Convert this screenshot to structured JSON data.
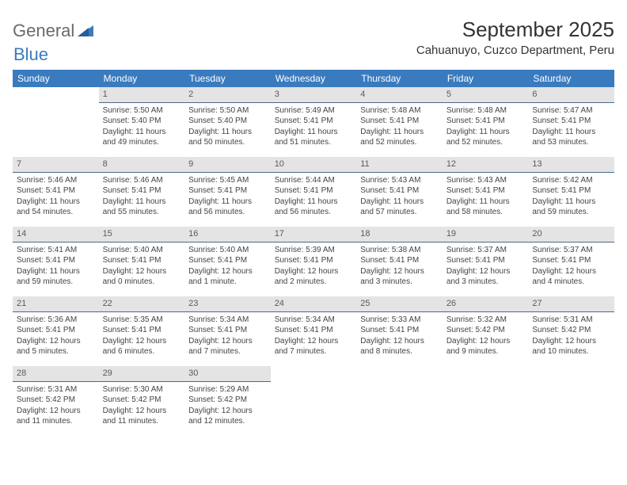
{
  "logo": {
    "word1": "General",
    "word2": "Blue"
  },
  "title": "September 2025",
  "location": "Cahuanuyo, Cuzco Department, Peru",
  "colors": {
    "header_bg": "#3a7bbf",
    "header_fg": "#ffffff",
    "daynum_bg": "#e4e4e4",
    "daynum_border": "#4a6a8a",
    "logo_gray": "#6a6a6a",
    "logo_blue": "#3a7bbf"
  },
  "weekdays": [
    "Sunday",
    "Monday",
    "Tuesday",
    "Wednesday",
    "Thursday",
    "Friday",
    "Saturday"
  ],
  "grid": [
    [
      null,
      {
        "n": "1",
        "sunrise": "5:50 AM",
        "sunset": "5:40 PM",
        "daylight": "11 hours and 49 minutes."
      },
      {
        "n": "2",
        "sunrise": "5:50 AM",
        "sunset": "5:40 PM",
        "daylight": "11 hours and 50 minutes."
      },
      {
        "n": "3",
        "sunrise": "5:49 AM",
        "sunset": "5:41 PM",
        "daylight": "11 hours and 51 minutes."
      },
      {
        "n": "4",
        "sunrise": "5:48 AM",
        "sunset": "5:41 PM",
        "daylight": "11 hours and 52 minutes."
      },
      {
        "n": "5",
        "sunrise": "5:48 AM",
        "sunset": "5:41 PM",
        "daylight": "11 hours and 52 minutes."
      },
      {
        "n": "6",
        "sunrise": "5:47 AM",
        "sunset": "5:41 PM",
        "daylight": "11 hours and 53 minutes."
      }
    ],
    [
      {
        "n": "7",
        "sunrise": "5:46 AM",
        "sunset": "5:41 PM",
        "daylight": "11 hours and 54 minutes."
      },
      {
        "n": "8",
        "sunrise": "5:46 AM",
        "sunset": "5:41 PM",
        "daylight": "11 hours and 55 minutes."
      },
      {
        "n": "9",
        "sunrise": "5:45 AM",
        "sunset": "5:41 PM",
        "daylight": "11 hours and 56 minutes."
      },
      {
        "n": "10",
        "sunrise": "5:44 AM",
        "sunset": "5:41 PM",
        "daylight": "11 hours and 56 minutes."
      },
      {
        "n": "11",
        "sunrise": "5:43 AM",
        "sunset": "5:41 PM",
        "daylight": "11 hours and 57 minutes."
      },
      {
        "n": "12",
        "sunrise": "5:43 AM",
        "sunset": "5:41 PM",
        "daylight": "11 hours and 58 minutes."
      },
      {
        "n": "13",
        "sunrise": "5:42 AM",
        "sunset": "5:41 PM",
        "daylight": "11 hours and 59 minutes."
      }
    ],
    [
      {
        "n": "14",
        "sunrise": "5:41 AM",
        "sunset": "5:41 PM",
        "daylight": "11 hours and 59 minutes."
      },
      {
        "n": "15",
        "sunrise": "5:40 AM",
        "sunset": "5:41 PM",
        "daylight": "12 hours and 0 minutes."
      },
      {
        "n": "16",
        "sunrise": "5:40 AM",
        "sunset": "5:41 PM",
        "daylight": "12 hours and 1 minute."
      },
      {
        "n": "17",
        "sunrise": "5:39 AM",
        "sunset": "5:41 PM",
        "daylight": "12 hours and 2 minutes."
      },
      {
        "n": "18",
        "sunrise": "5:38 AM",
        "sunset": "5:41 PM",
        "daylight": "12 hours and 3 minutes."
      },
      {
        "n": "19",
        "sunrise": "5:37 AM",
        "sunset": "5:41 PM",
        "daylight": "12 hours and 3 minutes."
      },
      {
        "n": "20",
        "sunrise": "5:37 AM",
        "sunset": "5:41 PM",
        "daylight": "12 hours and 4 minutes."
      }
    ],
    [
      {
        "n": "21",
        "sunrise": "5:36 AM",
        "sunset": "5:41 PM",
        "daylight": "12 hours and 5 minutes."
      },
      {
        "n": "22",
        "sunrise": "5:35 AM",
        "sunset": "5:41 PM",
        "daylight": "12 hours and 6 minutes."
      },
      {
        "n": "23",
        "sunrise": "5:34 AM",
        "sunset": "5:41 PM",
        "daylight": "12 hours and 7 minutes."
      },
      {
        "n": "24",
        "sunrise": "5:34 AM",
        "sunset": "5:41 PM",
        "daylight": "12 hours and 7 minutes."
      },
      {
        "n": "25",
        "sunrise": "5:33 AM",
        "sunset": "5:41 PM",
        "daylight": "12 hours and 8 minutes."
      },
      {
        "n": "26",
        "sunrise": "5:32 AM",
        "sunset": "5:42 PM",
        "daylight": "12 hours and 9 minutes."
      },
      {
        "n": "27",
        "sunrise": "5:31 AM",
        "sunset": "5:42 PM",
        "daylight": "12 hours and 10 minutes."
      }
    ],
    [
      {
        "n": "28",
        "sunrise": "5:31 AM",
        "sunset": "5:42 PM",
        "daylight": "12 hours and 11 minutes."
      },
      {
        "n": "29",
        "sunrise": "5:30 AM",
        "sunset": "5:42 PM",
        "daylight": "12 hours and 11 minutes."
      },
      {
        "n": "30",
        "sunrise": "5:29 AM",
        "sunset": "5:42 PM",
        "daylight": "12 hours and 12 minutes."
      },
      null,
      null,
      null,
      null
    ]
  ],
  "labels": {
    "sunrise": "Sunrise:",
    "sunset": "Sunset:",
    "daylight": "Daylight:"
  }
}
